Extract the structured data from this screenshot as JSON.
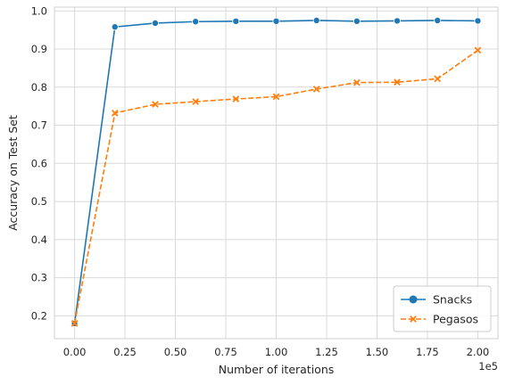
{
  "chart_data": {
    "type": "line",
    "xlabel": "Number of iterations",
    "ylabel": "Accuracy on Test Set",
    "x_offset_text": "1e5",
    "xlim": [
      -0.1,
      2.1
    ],
    "ylim": [
      0.14,
      1.01
    ],
    "x_ticks": [
      0.0,
      0.25,
      0.5,
      0.75,
      1.0,
      1.25,
      1.5,
      1.75,
      2.0
    ],
    "x_tick_labels": [
      "0.00",
      "0.25",
      "0.50",
      "0.75",
      "1.00",
      "1.25",
      "1.50",
      "1.75",
      "2.00"
    ],
    "y_ticks": [
      0.2,
      0.3,
      0.4,
      0.5,
      0.6,
      0.7,
      0.8,
      0.9,
      1.0
    ],
    "y_tick_labels": [
      "0.2",
      "0.3",
      "0.4",
      "0.5",
      "0.6",
      "0.7",
      "0.8",
      "0.9",
      "1.0"
    ],
    "x": [
      0.0,
      0.2,
      0.4,
      0.6,
      0.8,
      1.0,
      1.2,
      1.4,
      1.6,
      1.8,
      2.0
    ],
    "series": [
      {
        "name": "Snacks",
        "color": "#1f77b4",
        "linestyle": "solid",
        "marker": "circle",
        "values": [
          0.18,
          0.958,
          0.968,
          0.972,
          0.973,
          0.973,
          0.975,
          0.973,
          0.974,
          0.975,
          0.974
        ]
      },
      {
        "name": "Pegasos",
        "color": "#ff7f0e",
        "linestyle": "dashed",
        "marker": "x",
        "values": [
          0.18,
          0.732,
          0.755,
          0.762,
          0.769,
          0.775,
          0.795,
          0.812,
          0.813,
          0.822,
          0.897
        ]
      }
    ],
    "grid": true,
    "legend_position": "lower-right"
  }
}
